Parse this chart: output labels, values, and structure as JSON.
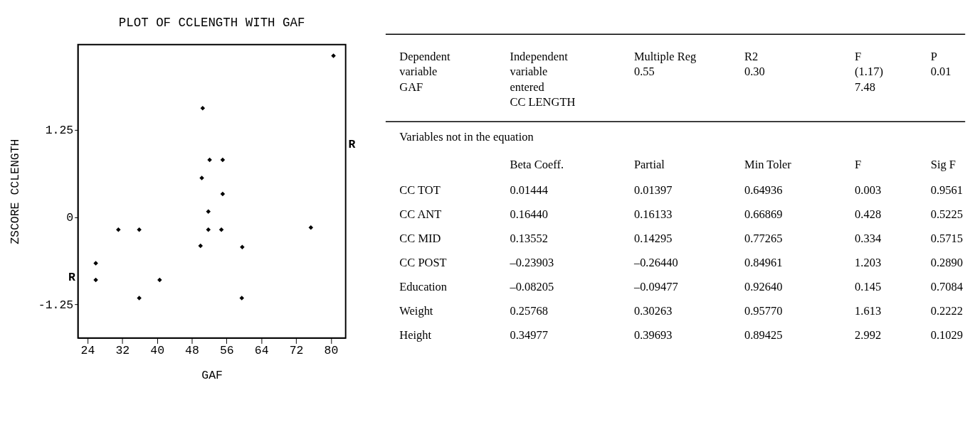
{
  "chart_data": [
    {
      "type": "scatter",
      "title": "PLOT OF CCLENGTH WITH GAF",
      "xlabel": "GAF",
      "ylabel": "ZSCORE CCLENGTH",
      "xlim": [
        21.8,
        83.4
      ],
      "ylim": [
        -1.73,
        2.47
      ],
      "xticks": [
        24,
        32,
        40,
        48,
        56,
        64,
        72,
        80
      ],
      "yticks": [
        -1.25,
        0,
        1.25
      ],
      "grid": false,
      "marker": "diamond",
      "series": [
        {
          "color": "#000000",
          "x": [
            50.5,
            52.1,
            55.1,
            50.3,
            55.1,
            51.8,
            31.1,
            35.9,
            51.8,
            54.8,
            75.4,
            50.0,
            59.6,
            25.9,
            25.9,
            40.6,
            35.9,
            59.5,
            80.6
          ],
          "values": [
            1.56,
            0.82,
            0.82,
            0.56,
            0.33,
            0.08,
            -0.18,
            -0.18,
            -0.18,
            -0.18,
            -0.15,
            -0.41,
            -0.43,
            -0.66,
            -0.9,
            -0.9,
            -1.16,
            -1.16,
            2.31
          ]
        }
      ],
      "annotations": [
        "R",
        "R"
      ]
    },
    {
      "type": "other",
      "annotations": [
        "Dependent\nvariable",
        "GAF",
        "Independent\nvariable\nentered",
        "CC LENGTH",
        "Multiple Reg",
        "0.55",
        "R2",
        "0.30",
        "F",
        "(1.17)\n7.48",
        "P",
        "0.01",
        "Variables not in the equation"
      ],
      "categories": [
        "CC TOT",
        "CC ANT",
        "CC MID",
        "CC POST",
        "Education",
        "Weight",
        "Height"
      ],
      "series": [
        {
          "name": "Beta Coeff.",
          "color": "#000000",
          "values": [
            0.01444,
            0.1644,
            0.13552,
            -0.23903,
            -0.08205,
            0.25768,
            0.34977
          ],
          "value_labels": [
            "0.01444",
            "0.16440",
            "0.13552",
            "–0.23903",
            "–0.08205",
            "0.25768",
            "0.34977"
          ]
        },
        {
          "name": "Partial",
          "color": "#000000",
          "values": [
            0.01397,
            0.16133,
            0.14295,
            -0.2644,
            -0.09477,
            0.30263,
            0.39693
          ],
          "value_labels": [
            "0.01397",
            "0.16133",
            "0.14295",
            "–0.26440",
            "–0.09477",
            "0.30263",
            "0.39693"
          ]
        },
        {
          "name": "Min Toler",
          "color": "#000000",
          "values": [
            0.64936,
            0.66869,
            0.77265,
            0.84961,
            0.9264,
            0.9577,
            0.89425
          ],
          "value_labels": [
            "0.64936",
            "0.66869",
            "0.77265",
            "0.84961",
            "0.92640",
            "0.95770",
            "0.89425"
          ]
        },
        {
          "name": "F",
          "color": "#000000",
          "values": [
            0.003,
            0.428,
            0.334,
            1.203,
            0.145,
            1.613,
            2.992
          ],
          "value_labels": [
            "0.003",
            "0.428",
            "0.334",
            "1.203",
            "0.145",
            "1.613",
            "2.992"
          ]
        },
        {
          "name": "Sig F",
          "color": "#000000",
          "values": [
            0.9561,
            0.5225,
            0.5715,
            0.289,
            0.7084,
            0.2222,
            0.1029
          ],
          "value_labels": [
            "0.9561",
            "0.5225",
            "0.5715",
            "0.2890",
            "0.7084",
            "0.2222",
            "0.1029"
          ]
        }
      ]
    }
  ]
}
